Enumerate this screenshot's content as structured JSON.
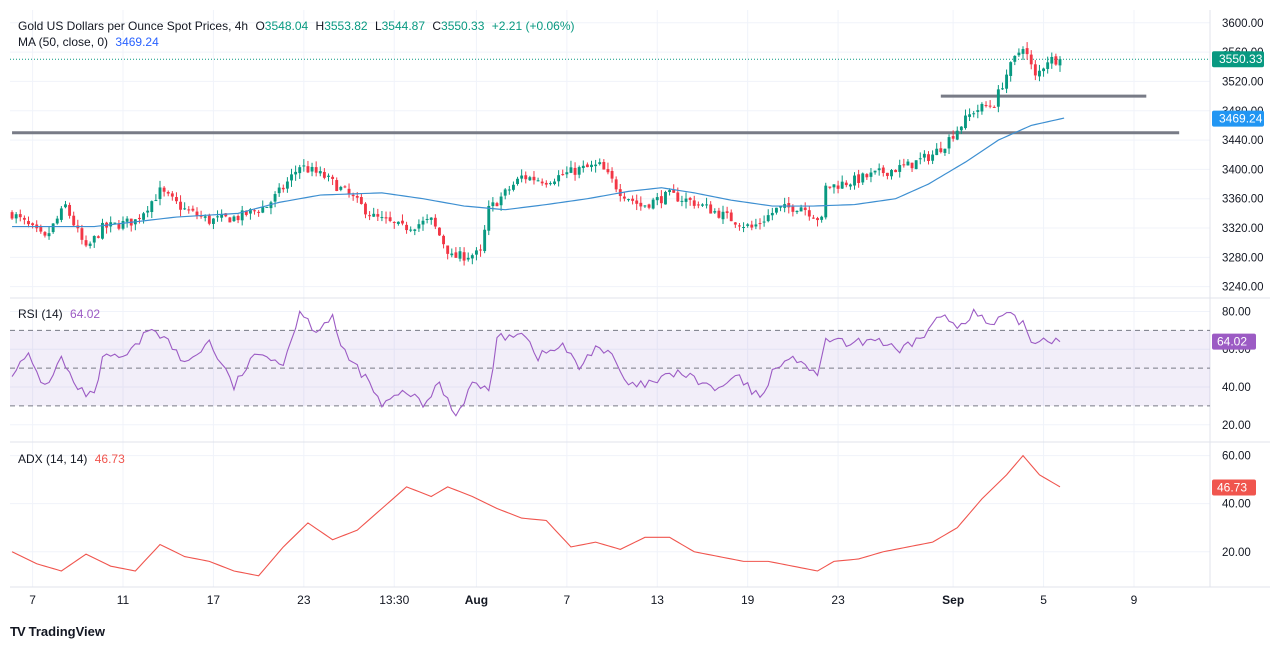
{
  "title_line": {
    "symbol": "Gold US Dollars per Ounce Spot Prices, 4h",
    "open_label": "O",
    "open": "3548.04",
    "high_label": "H",
    "high": "3553.82",
    "low_label": "L",
    "low": "3544.87",
    "close_label": "C",
    "close": "3550.33",
    "change": "+2.21 (+0.06%)"
  },
  "ma_line": {
    "label": "MA (50, close, 0)",
    "value": "3469.24"
  },
  "rsi_line": {
    "label": "RSI (14)",
    "value": "64.02"
  },
  "adx_line": {
    "label": "ADX (14, 14)",
    "value": "46.73"
  },
  "branding": {
    "logo_text": "TV",
    "name": "TradingView"
  },
  "colors": {
    "up": "#089981",
    "down": "#f23645",
    "ma": "#2962ff",
    "ma_line": "#3d8fd1",
    "rsi": "#9c5bc4",
    "adx": "#f0554e",
    "support": "#787b86"
  },
  "chart_data": [
    {
      "type": "candlestick",
      "title": "Gold US Dollars per Ounce Spot Prices, 4h",
      "ylim": [
        3230,
        3612
      ],
      "y_ticks": [
        3240,
        3280,
        3320,
        3360,
        3400,
        3440,
        3480,
        3520,
        3560,
        3600
      ],
      "y_tick_labels": [
        "3240.00",
        "3280.00",
        "3320.00",
        "3360.00",
        "3400.00",
        "3440.00",
        "3480.00",
        "3520.00",
        "3560.00",
        "3600.00"
      ],
      "x_ticks": [
        {
          "bar": 5,
          "label": "7",
          "bold": false
        },
        {
          "bar": 27,
          "label": "11",
          "bold": false
        },
        {
          "bar": 49,
          "label": "17",
          "bold": false
        },
        {
          "bar": 71,
          "label": "23",
          "bold": false
        },
        {
          "bar": 93,
          "label": "13:30",
          "bold": false
        },
        {
          "bar": 113,
          "label": "Aug",
          "bold": true
        },
        {
          "bar": 135,
          "label": "7",
          "bold": false
        },
        {
          "bar": 157,
          "label": "13",
          "bold": false
        },
        {
          "bar": 179,
          "label": "19",
          "bold": false
        },
        {
          "bar": 201,
          "label": "23",
          "bold": false
        },
        {
          "bar": 229,
          "label": "Sep",
          "bold": true
        },
        {
          "bar": 251,
          "label": "5",
          "bold": false
        },
        {
          "bar": 273,
          "label": "9",
          "bold": false
        }
      ],
      "bar_count_view": 292,
      "close_anchors": [
        [
          0,
          3340
        ],
        [
          8,
          3305
        ],
        [
          13,
          3350
        ],
        [
          18,
          3290
        ],
        [
          22,
          3320
        ],
        [
          30,
          3330
        ],
        [
          36,
          3370
        ],
        [
          42,
          3345
        ],
        [
          48,
          3330
        ],
        [
          55,
          3335
        ],
        [
          62,
          3350
        ],
        [
          66,
          3375
        ],
        [
          70,
          3405
        ],
        [
          76,
          3390
        ],
        [
          82,
          3365
        ],
        [
          88,
          3335
        ],
        [
          95,
          3320
        ],
        [
          102,
          3330
        ],
        [
          107,
          3280
        ],
        [
          114,
          3285
        ],
        [
          116,
          3345
        ],
        [
          124,
          3390
        ],
        [
          130,
          3385
        ],
        [
          138,
          3400
        ],
        [
          143,
          3405
        ],
        [
          148,
          3370
        ],
        [
          153,
          3350
        ],
        [
          160,
          3365
        ],
        [
          166,
          3355
        ],
        [
          172,
          3340
        ],
        [
          180,
          3320
        ],
        [
          186,
          3345
        ],
        [
          192,
          3350
        ],
        [
          197,
          3330
        ],
        [
          198,
          3375
        ],
        [
          205,
          3385
        ],
        [
          211,
          3395
        ],
        [
          218,
          3405
        ],
        [
          224,
          3420
        ],
        [
          227,
          3435
        ],
        [
          230,
          3455
        ],
        [
          234,
          3480
        ],
        [
          239,
          3490
        ],
        [
          242,
          3530
        ],
        [
          246,
          3570
        ],
        [
          249,
          3525
        ],
        [
          252,
          3550
        ],
        [
          255,
          3550
        ]
      ],
      "support_levels": [
        {
          "price": 3500,
          "from_bar": 226,
          "to_bar": 276
        },
        {
          "price": 3450,
          "from_bar": 0,
          "to_bar": 284
        }
      ],
      "last_price": 3550.33,
      "last_price_label": "3550.33",
      "ma": {
        "name": "MA (50, close, 0)",
        "value": 3469.24,
        "label": "3469.24",
        "anchors": [
          [
            0,
            3322
          ],
          [
            20,
            3322
          ],
          [
            40,
            3335
          ],
          [
            55,
            3340
          ],
          [
            65,
            3355
          ],
          [
            75,
            3365
          ],
          [
            90,
            3368
          ],
          [
            100,
            3360
          ],
          [
            110,
            3350
          ],
          [
            120,
            3345
          ],
          [
            130,
            3352
          ],
          [
            140,
            3360
          ],
          [
            150,
            3370
          ],
          [
            158,
            3375
          ],
          [
            166,
            3368
          ],
          [
            175,
            3358
          ],
          [
            185,
            3350
          ],
          [
            195,
            3350
          ],
          [
            205,
            3352
          ],
          [
            215,
            3360
          ],
          [
            223,
            3380
          ],
          [
            232,
            3410
          ],
          [
            240,
            3440
          ],
          [
            248,
            3460
          ],
          [
            256,
            3470
          ]
        ]
      }
    },
    {
      "type": "line",
      "title": "RSI (14)",
      "ylim": [
        13,
        85
      ],
      "y_ticks": [
        20,
        40,
        60,
        80
      ],
      "y_tick_labels": [
        "20.00",
        "40.00",
        "60.00",
        "80.00"
      ],
      "band": {
        "upper": 70,
        "middle": 50,
        "lower": 30
      },
      "last_value": 64.02,
      "last_label": "64.02",
      "anchors": [
        [
          0,
          48
        ],
        [
          4,
          56
        ],
        [
          8,
          40
        ],
        [
          12,
          55
        ],
        [
          16,
          38
        ],
        [
          20,
          35
        ],
        [
          22,
          55
        ],
        [
          28,
          56
        ],
        [
          34,
          72
        ],
        [
          38,
          64
        ],
        [
          42,
          52
        ],
        [
          48,
          64
        ],
        [
          54,
          40
        ],
        [
          58,
          54
        ],
        [
          62,
          58
        ],
        [
          66,
          52
        ],
        [
          70,
          80
        ],
        [
          74,
          70
        ],
        [
          78,
          78
        ],
        [
          80,
          60
        ],
        [
          86,
          45
        ],
        [
          90,
          30
        ],
        [
          96,
          38
        ],
        [
          100,
          30
        ],
        [
          104,
          42
        ],
        [
          108,
          25
        ],
        [
          112,
          42
        ],
        [
          116,
          38
        ],
        [
          118,
          65
        ],
        [
          124,
          70
        ],
        [
          128,
          56
        ],
        [
          134,
          62
        ],
        [
          138,
          50
        ],
        [
          142,
          62
        ],
        [
          146,
          56
        ],
        [
          150,
          40
        ],
        [
          156,
          42
        ],
        [
          162,
          48
        ],
        [
          166,
          44
        ],
        [
          172,
          38
        ],
        [
          176,
          46
        ],
        [
          182,
          34
        ],
        [
          186,
          52
        ],
        [
          192,
          55
        ],
        [
          196,
          44
        ],
        [
          198,
          66
        ],
        [
          204,
          62
        ],
        [
          210,
          66
        ],
        [
          216,
          58
        ],
        [
          222,
          68
        ],
        [
          226,
          78
        ],
        [
          230,
          72
        ],
        [
          234,
          80
        ],
        [
          238,
          72
        ],
        [
          242,
          78
        ],
        [
          246,
          74
        ],
        [
          248,
          64
        ],
        [
          252,
          66
        ],
        [
          255,
          64
        ]
      ]
    },
    {
      "type": "line",
      "title": "ADX (14, 14)",
      "ylim": [
        7,
        64
      ],
      "y_ticks": [
        20,
        40,
        60
      ],
      "y_tick_labels": [
        "20.00",
        "40.00",
        "60.00"
      ],
      "last_value": 46.73,
      "last_label": "46.73",
      "anchors": [
        [
          0,
          20
        ],
        [
          6,
          15
        ],
        [
          12,
          12
        ],
        [
          18,
          19
        ],
        [
          24,
          14
        ],
        [
          30,
          12
        ],
        [
          36,
          23
        ],
        [
          42,
          18
        ],
        [
          48,
          16
        ],
        [
          54,
          12
        ],
        [
          60,
          10
        ],
        [
          66,
          22
        ],
        [
          72,
          32
        ],
        [
          78,
          25
        ],
        [
          84,
          29
        ],
        [
          90,
          38
        ],
        [
          96,
          47
        ],
        [
          102,
          43
        ],
        [
          106,
          47
        ],
        [
          112,
          43
        ],
        [
          118,
          38
        ],
        [
          124,
          34
        ],
        [
          130,
          33
        ],
        [
          136,
          22
        ],
        [
          142,
          24
        ],
        [
          148,
          21
        ],
        [
          154,
          26
        ],
        [
          160,
          26
        ],
        [
          166,
          20
        ],
        [
          172,
          18
        ],
        [
          178,
          16
        ],
        [
          184,
          16
        ],
        [
          190,
          14
        ],
        [
          196,
          12
        ],
        [
          200,
          16
        ],
        [
          206,
          17
        ],
        [
          212,
          20
        ],
        [
          218,
          22
        ],
        [
          224,
          24
        ],
        [
          230,
          30
        ],
        [
          236,
          42
        ],
        [
          242,
          52
        ],
        [
          246,
          60
        ],
        [
          250,
          52
        ],
        [
          255,
          47
        ]
      ]
    }
  ]
}
